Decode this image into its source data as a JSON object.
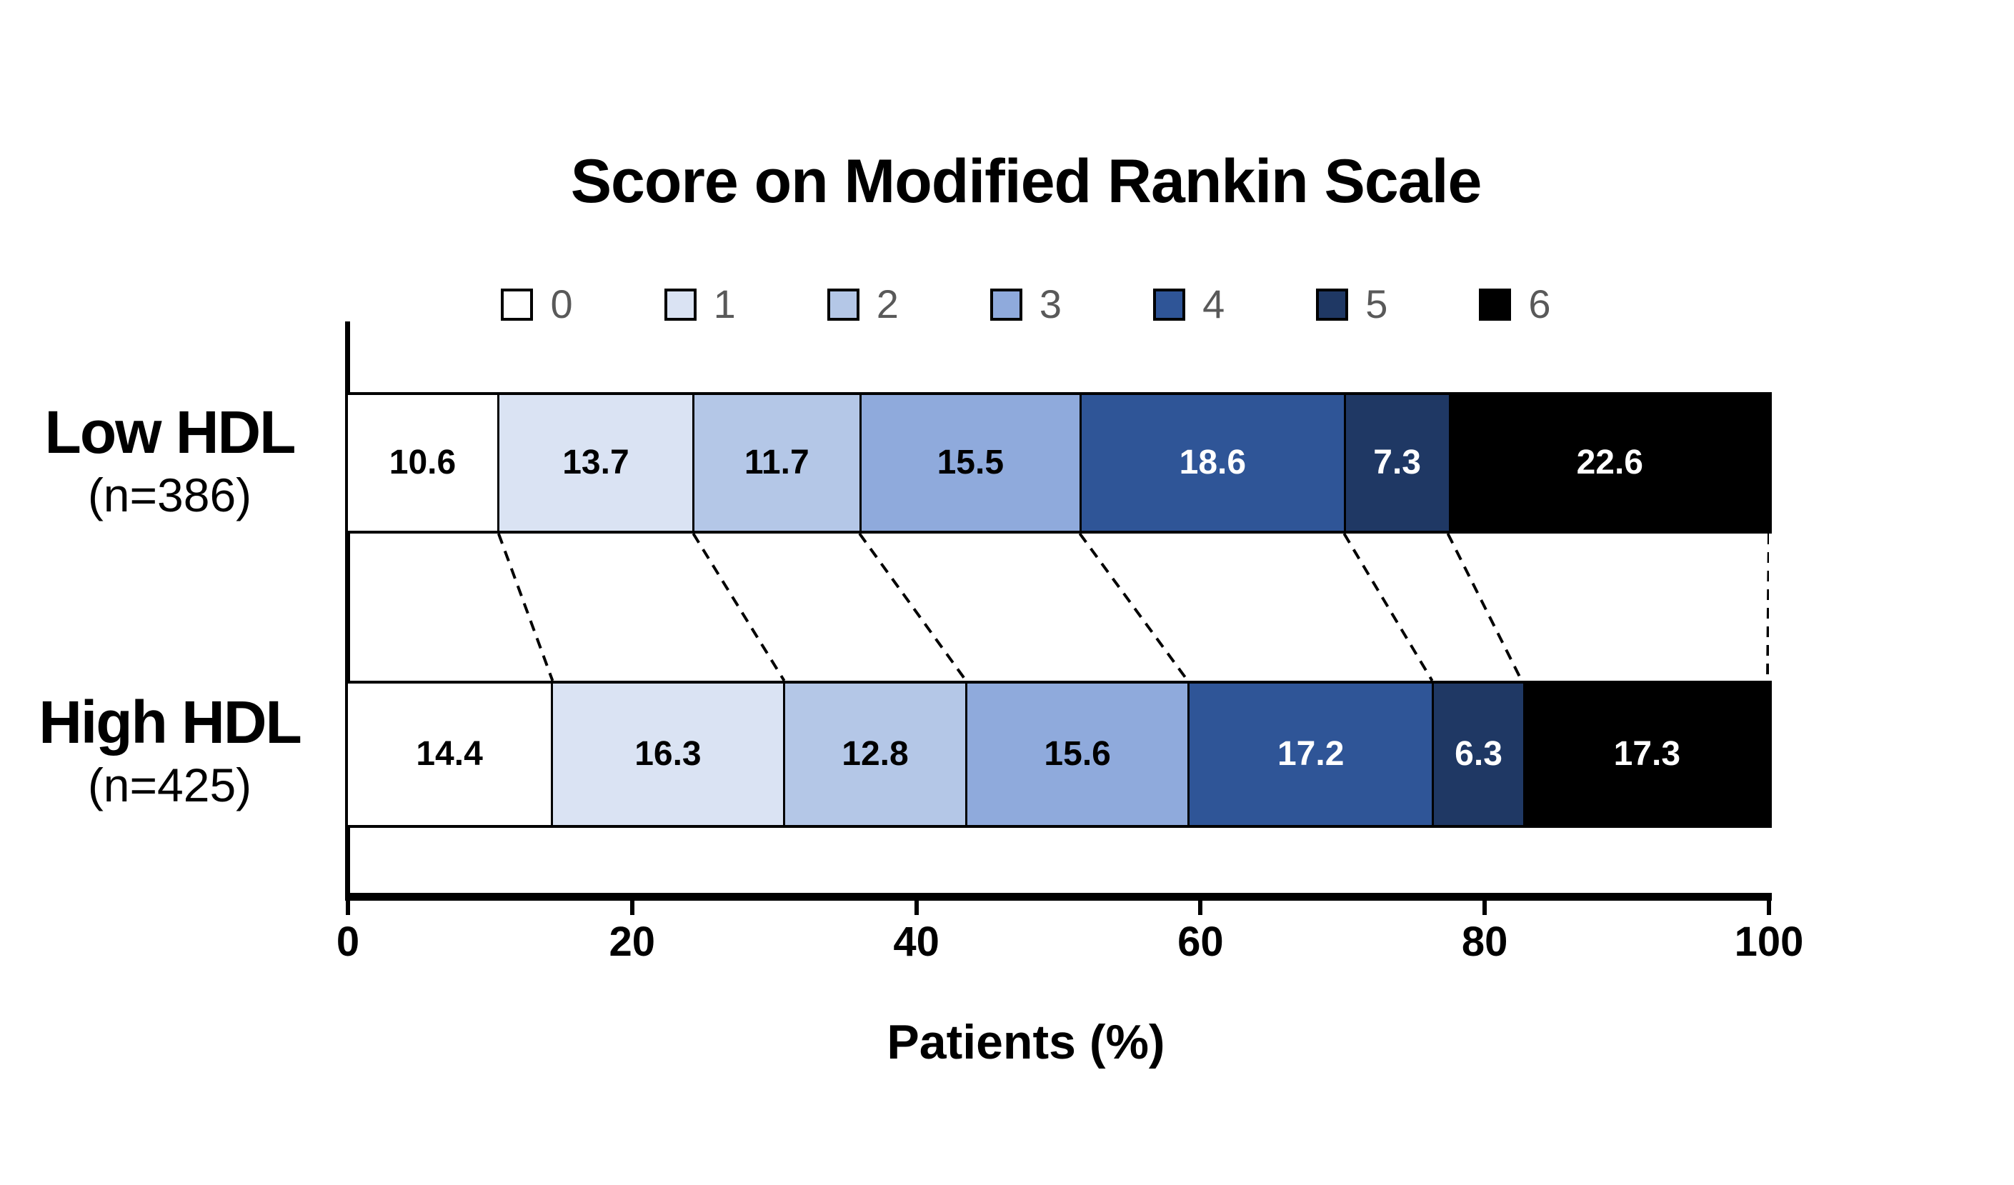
{
  "title": "Score on Modified Rankin Scale",
  "x_axis": {
    "label": "Patients (%)",
    "ticks": [
      "0",
      "20",
      "40",
      "60",
      "80",
      "100"
    ]
  },
  "rows": [
    {
      "label": "Low HDL",
      "sub_label": "(n=386)"
    },
    {
      "label": "High HDL",
      "sub_label": "(n=425)"
    }
  ],
  "colors": {
    "axis": "#000000",
    "segment_border": "#000000",
    "legend_label": "#595959",
    "connector_line": "#000000",
    "background": "#ffffff"
  },
  "chart_data": {
    "type": "bar",
    "stacked": true,
    "orientation": "horizontal",
    "title": "Score on Modified Rankin Scale",
    "xlabel": "Patients (%)",
    "xlim": [
      0,
      100
    ],
    "x_ticks": [
      0,
      20,
      40,
      60,
      80,
      100
    ],
    "grid": false,
    "legend_position": "top",
    "categories": [
      "Low HDL (n=386)",
      "High HDL (n=425)"
    ],
    "series": [
      {
        "name": "0",
        "color": "#FFFFFF",
        "label_color": "#000000",
        "values": [
          10.6,
          14.4
        ]
      },
      {
        "name": "1",
        "color": "#DAE3F3",
        "label_color": "#000000",
        "values": [
          13.7,
          16.3
        ]
      },
      {
        "name": "2",
        "color": "#B4C7E7",
        "label_color": "#000000",
        "values": [
          11.7,
          12.8
        ]
      },
      {
        "name": "3",
        "color": "#8FAADC",
        "label_color": "#000000",
        "values": [
          15.5,
          15.6
        ]
      },
      {
        "name": "4",
        "color": "#2F5597",
        "label_color": "#FFFFFF",
        "values": [
          18.6,
          17.2
        ]
      },
      {
        "name": "5",
        "color": "#1F3864",
        "label_color": "#FFFFFF",
        "values": [
          7.3,
          6.3
        ]
      },
      {
        "name": "6",
        "color": "#000000",
        "label_color": "#FFFFFF",
        "values": [
          22.6,
          17.3
        ]
      }
    ]
  }
}
